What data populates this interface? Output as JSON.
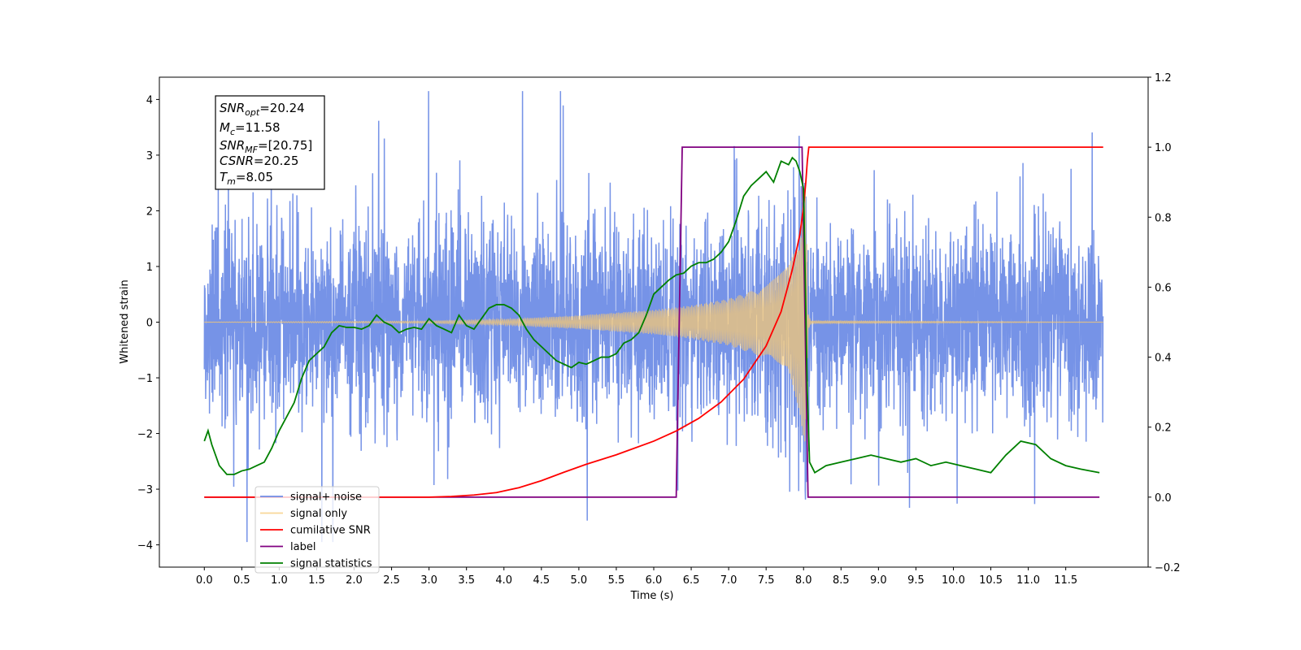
{
  "chart_data": {
    "type": "line",
    "xlabel": "Time (s)",
    "ylabel": "Whitened strain",
    "xlim": [
      -0.6,
      12.6
    ],
    "ylim": [
      -4.4,
      4.4
    ],
    "y2lim": [
      -0.2,
      1.2
    ],
    "xticks": [
      "0.0",
      "0.5",
      "1.0",
      "1.5",
      "2.0",
      "2.5",
      "3.0",
      "3.5",
      "4.0",
      "4.5",
      "5.0",
      "5.5",
      "6.0",
      "6.5",
      "7.0",
      "7.5",
      "8.0",
      "8.5",
      "9.0",
      "9.5",
      "10.0",
      "10.5",
      "11.0",
      "11.5"
    ],
    "yticks": [
      "4",
      "3",
      "2",
      "1",
      "0",
      "−1",
      "−2",
      "−3",
      "−4"
    ],
    "y2ticks": [
      "1.2",
      "1.0",
      "0.8",
      "0.6",
      "0.4",
      "0.2",
      "0.0",
      "−0.2"
    ],
    "grid": false,
    "legend_position": "lower-left",
    "annotation": {
      "snr_opt": {
        "base": "SNR",
        "sub": "opt",
        "value": "=20.24"
      },
      "mc": {
        "base": "M",
        "sub": "c",
        "value": "=11.58"
      },
      "snr_mf": {
        "base": "SNR",
        "sub": "MF",
        "value": "=[20.75]"
      },
      "csnr": {
        "base": "CSNR",
        "value": "=20.25"
      },
      "tm": {
        "base": "T",
        "sub": "m",
        "value": "=8.05"
      }
    },
    "series": [
      {
        "name": "signal+ noise",
        "color": "#6f8de6",
        "axis": "left",
        "description_range": {
          "x": [
            0.0,
            12.0
          ],
          "y_typical": [
            -2.5,
            2.5
          ],
          "y_peak": [
            -3.9,
            4.1
          ]
        }
      },
      {
        "name": "signal only",
        "color": "#f5c875",
        "axis": "left",
        "envelope": {
          "x": [
            0.0,
            3.0,
            4.0,
            5.0,
            6.0,
            6.5,
            7.0,
            7.5,
            7.8,
            7.95,
            8.03,
            8.06,
            8.1,
            12.0
          ],
          "amp": [
            0.0,
            0.02,
            0.05,
            0.12,
            0.22,
            0.3,
            0.42,
            0.65,
            1.0,
            1.6,
            2.5,
            0.15,
            0.02,
            0.0
          ]
        }
      },
      {
        "name": "cumilative SNR",
        "color": "#ff0000",
        "axis": "right",
        "x": [
          0.0,
          3.0,
          3.3,
          3.6,
          3.9,
          4.2,
          4.5,
          4.8,
          5.1,
          5.5,
          6.0,
          6.3,
          6.6,
          6.9,
          7.2,
          7.5,
          7.7,
          7.85,
          7.95,
          8.0,
          8.03,
          8.05,
          8.07,
          12.0
        ],
        "y": [
          0.0,
          0.0,
          0.002,
          0.006,
          0.013,
          0.027,
          0.047,
          0.071,
          0.094,
          0.121,
          0.16,
          0.189,
          0.225,
          0.272,
          0.337,
          0.432,
          0.53,
          0.65,
          0.75,
          0.83,
          0.9,
          0.96,
          1.0,
          1.0
        ]
      },
      {
        "name": "label",
        "color": "#800080",
        "axis": "right",
        "x": [
          0.0,
          6.3,
          6.38,
          7.98,
          8.06,
          11.95
        ],
        "y": [
          0.0,
          0.0,
          1.0,
          1.0,
          0.0,
          0.0
        ]
      },
      {
        "name": "signal statistics",
        "color": "#008000",
        "axis": "right",
        "x": [
          0.0,
          0.05,
          0.1,
          0.2,
          0.3,
          0.4,
          0.5,
          0.6,
          0.7,
          0.8,
          0.9,
          1.0,
          1.1,
          1.2,
          1.3,
          1.4,
          1.5,
          1.6,
          1.7,
          1.8,
          1.9,
          2.0,
          2.1,
          2.2,
          2.3,
          2.4,
          2.5,
          2.6,
          2.7,
          2.8,
          2.9,
          3.0,
          3.1,
          3.2,
          3.3,
          3.4,
          3.5,
          3.6,
          3.7,
          3.8,
          3.9,
          4.0,
          4.1,
          4.2,
          4.3,
          4.4,
          4.5,
          4.6,
          4.7,
          4.8,
          4.9,
          5.0,
          5.1,
          5.2,
          5.3,
          5.4,
          5.5,
          5.6,
          5.7,
          5.8,
          5.9,
          6.0,
          6.1,
          6.2,
          6.3,
          6.4,
          6.5,
          6.6,
          6.7,
          6.8,
          6.9,
          7.0,
          7.1,
          7.2,
          7.3,
          7.4,
          7.5,
          7.6,
          7.7,
          7.8,
          7.85,
          7.9,
          7.95,
          8.0,
          8.05,
          8.08,
          8.15,
          8.3,
          8.5,
          8.7,
          8.9,
          9.1,
          9.3,
          9.5,
          9.7,
          9.9,
          10.1,
          10.3,
          10.5,
          10.7,
          10.9,
          11.1,
          11.3,
          11.5,
          11.7,
          11.95
        ],
        "y": [
          0.16,
          0.19,
          0.15,
          0.09,
          0.065,
          0.065,
          0.075,
          0.08,
          0.09,
          0.1,
          0.14,
          0.19,
          0.23,
          0.27,
          0.34,
          0.39,
          0.41,
          0.43,
          0.47,
          0.49,
          0.485,
          0.485,
          0.48,
          0.49,
          0.52,
          0.5,
          0.49,
          0.47,
          0.48,
          0.485,
          0.48,
          0.51,
          0.49,
          0.48,
          0.47,
          0.52,
          0.49,
          0.48,
          0.51,
          0.54,
          0.55,
          0.55,
          0.54,
          0.52,
          0.48,
          0.45,
          0.43,
          0.41,
          0.39,
          0.38,
          0.37,
          0.385,
          0.38,
          0.39,
          0.4,
          0.4,
          0.41,
          0.44,
          0.45,
          0.47,
          0.52,
          0.58,
          0.6,
          0.62,
          0.635,
          0.64,
          0.66,
          0.67,
          0.67,
          0.68,
          0.7,
          0.73,
          0.79,
          0.86,
          0.89,
          0.91,
          0.93,
          0.9,
          0.96,
          0.95,
          0.97,
          0.96,
          0.93,
          0.88,
          0.3,
          0.1,
          0.07,
          0.09,
          0.1,
          0.11,
          0.12,
          0.11,
          0.1,
          0.11,
          0.09,
          0.1,
          0.09,
          0.08,
          0.07,
          0.12,
          0.16,
          0.15,
          0.11,
          0.09,
          0.08,
          0.07
        ]
      }
    ]
  }
}
